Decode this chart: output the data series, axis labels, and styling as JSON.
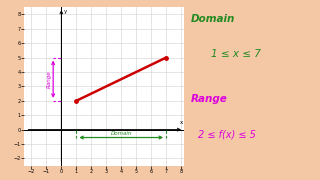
{
  "background_color": "#f5c8a5",
  "graph_bg": "#ffffff",
  "xlim": [
    -2.5,
    8.2
  ],
  "ylim": [
    -2.5,
    8.5
  ],
  "xticks": [
    -2,
    -1,
    0,
    1,
    2,
    3,
    4,
    5,
    6,
    7,
    8
  ],
  "yticks": [
    -2,
    -1,
    0,
    1,
    2,
    3,
    4,
    5,
    6,
    7,
    8
  ],
  "line_x": [
    1,
    7
  ],
  "line_y": [
    2,
    5
  ],
  "line_color": "#cc0000",
  "line_width": 1.8,
  "dot_color": "#cc0000",
  "domain_arrow_color": "#228b22",
  "range_arrow_color": "#dd00dd",
  "domain_label": "Domain",
  "range_label": "Range",
  "domain_text": "Domain",
  "domain_eq": "1 ≤ x ≤ 7",
  "range_text": "Range",
  "range_eq": "2 ≤ f(x) ≤ 5",
  "text_domain_color": "#228b22",
  "text_range_color": "#dd00dd",
  "grid_color": "#d0d0d0",
  "figsize": [
    3.2,
    1.8
  ],
  "dpi": 100
}
